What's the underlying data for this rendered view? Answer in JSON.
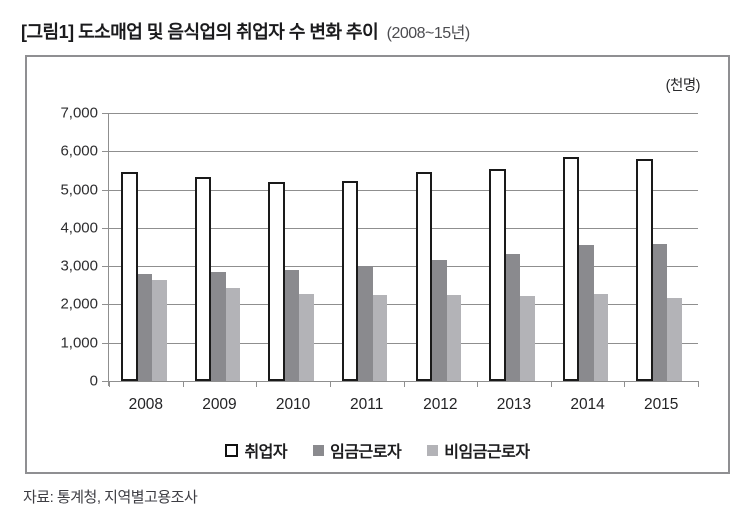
{
  "header": {
    "title": "[그림1] 도소매업 및 음식업의 취업자 수 변화 추이",
    "period": "(2008~15년)"
  },
  "footer": {
    "source": "자료: 통계청, 지역별고용조사"
  },
  "chart_data": {
    "type": "bar",
    "title": "도소매업 및 음식업의 취업자 수 변화 추이 (2008~15년)",
    "unit": "(천명)",
    "categories": [
      "2008",
      "2009",
      "2010",
      "2011",
      "2012",
      "2013",
      "2014",
      "2015"
    ],
    "series": [
      {
        "name": "취업자",
        "key": "employed",
        "style": "outline",
        "fill": "#ffffff",
        "border": "#1a1a1a",
        "values": [
          5470,
          5340,
          5190,
          5220,
          5460,
          5550,
          5840,
          5790
        ]
      },
      {
        "name": "임금근로자",
        "key": "wage-workers",
        "style": "solid",
        "fill": "#8a8a8e",
        "values": [
          2790,
          2860,
          2900,
          3010,
          3160,
          3310,
          3540,
          3570
        ]
      },
      {
        "name": "비임금근로자",
        "key": "non-wage-workers",
        "style": "solid",
        "fill": "#b3b3b7",
        "values": [
          2640,
          2420,
          2280,
          2240,
          2250,
          2220,
          2280,
          2180
        ]
      }
    ],
    "ylim": [
      0,
      7000
    ],
    "y_tick_labels": [
      "7,000",
      "6,000",
      "5,000",
      "4,000",
      "3,000",
      "2,000",
      "1,000",
      "0"
    ],
    "grid": true,
    "legend_position": "bottom"
  }
}
